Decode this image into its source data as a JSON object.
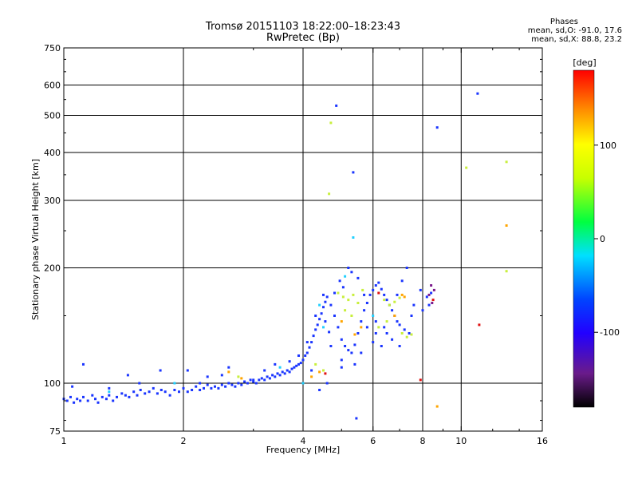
{
  "chart_data": {
    "type": "scatter",
    "title": "Tromsø 20151103 18:22:00–18:23:43",
    "subtitle": "RwPretec (Bp)",
    "xlabel": "Frequency [MHz]",
    "ylabel": "Stationary phase Virtual Height [km]",
    "x_scale": "log",
    "y_scale": "log",
    "xlim": [
      1,
      16
    ],
    "ylim": [
      75,
      750
    ],
    "x_ticks": [
      1,
      2,
      4,
      6,
      8,
      10,
      16
    ],
    "y_ticks": [
      75,
      100,
      200,
      300,
      400,
      500,
      600,
      750
    ],
    "x_gridlines": [
      2,
      4,
      6,
      8,
      10
    ],
    "y_gridlines": [
      100,
      200,
      300,
      400,
      500,
      600
    ],
    "grid": true,
    "stats": {
      "header": "Phases",
      "line1": "mean, sd,O: -91.0, 17.6",
      "line2": "mean, sd,X:  88.8, 23.2"
    },
    "colorbar": {
      "unit_label": "[deg]",
      "range": [
        -180,
        180
      ],
      "ticks": [
        {
          "value": 100,
          "label": "100"
        },
        {
          "value": 0,
          "label": "0"
        },
        {
          "value": -100,
          "label": "-100"
        }
      ]
    },
    "series": [
      {
        "points": [
          [
            1.0,
            91
          ],
          [
            1.02,
            90
          ],
          [
            1.04,
            92
          ],
          [
            1.06,
            89
          ],
          [
            1.08,
            91
          ],
          [
            1.1,
            90
          ],
          [
            1.12,
            92
          ],
          [
            1.15,
            90
          ],
          [
            1.18,
            93
          ],
          [
            1.2,
            91
          ],
          [
            1.22,
            89
          ],
          [
            1.25,
            92
          ],
          [
            1.28,
            91
          ],
          [
            1.3,
            93
          ],
          [
            1.33,
            90
          ],
          [
            1.36,
            92
          ],
          [
            1.4,
            94
          ],
          [
            1.43,
            93
          ],
          [
            1.46,
            92
          ],
          [
            1.5,
            95
          ],
          [
            1.53,
            93
          ],
          [
            1.56,
            96
          ],
          [
            1.6,
            94
          ],
          [
            1.64,
            95
          ],
          [
            1.68,
            97
          ],
          [
            1.72,
            94
          ],
          [
            1.76,
            96
          ],
          [
            1.8,
            95
          ],
          [
            1.85,
            93
          ],
          [
            1.9,
            96
          ],
          [
            1.95,
            95
          ],
          [
            2.0,
            97
          ],
          [
            2.05,
            95
          ],
          [
            2.1,
            96
          ],
          [
            2.15,
            98
          ],
          [
            2.2,
            96
          ],
          [
            2.25,
            97
          ],
          [
            2.3,
            99
          ],
          [
            2.35,
            97
          ],
          [
            2.4,
            98
          ],
          [
            2.45,
            97
          ],
          [
            2.5,
            99
          ],
          [
            2.55,
            98
          ],
          [
            2.6,
            100
          ],
          [
            2.65,
            99
          ],
          [
            2.7,
            98
          ],
          [
            2.75,
            100
          ],
          [
            2.8,
            99
          ],
          [
            2.85,
            101
          ],
          [
            2.9,
            100
          ],
          [
            2.95,
            102
          ],
          [
            3.0,
            101
          ],
          [
            3.05,
            100
          ],
          [
            3.1,
            102
          ],
          [
            3.15,
            103
          ],
          [
            3.2,
            102
          ],
          [
            3.25,
            104
          ],
          [
            3.3,
            103
          ],
          [
            3.35,
            105
          ],
          [
            3.4,
            104
          ],
          [
            3.45,
            106
          ],
          [
            3.5,
            105
          ],
          [
            3.55,
            107
          ],
          [
            3.6,
            106
          ],
          [
            3.65,
            108
          ],
          [
            3.7,
            107
          ],
          [
            3.75,
            109
          ],
          [
            3.8,
            110
          ],
          [
            3.85,
            111
          ],
          [
            3.9,
            112
          ],
          [
            3.95,
            113
          ],
          [
            4.0,
            115
          ],
          [
            4.05,
            118
          ],
          [
            4.1,
            120
          ],
          [
            4.15,
            124
          ],
          [
            4.2,
            128
          ],
          [
            4.25,
            133
          ],
          [
            4.3,
            138
          ],
          [
            4.35,
            142
          ],
          [
            4.4,
            147
          ],
          [
            4.45,
            152
          ],
          [
            4.5,
            158
          ],
          [
            4.55,
            163
          ],
          [
            4.6,
            168
          ],
          [
            4.7,
            160
          ],
          [
            4.8,
            150
          ],
          [
            4.9,
            140
          ],
          [
            5.0,
            130
          ],
          [
            5.1,
            125
          ],
          [
            5.2,
            122
          ],
          [
            5.3,
            120
          ],
          [
            5.4,
            126
          ],
          [
            5.5,
            135
          ],
          [
            5.6,
            145
          ],
          [
            5.7,
            155
          ],
          [
            5.8,
            162
          ],
          [
            5.9,
            170
          ],
          [
            6.0,
            175
          ],
          [
            6.1,
            180
          ],
          [
            6.2,
            183
          ],
          [
            6.3,
            176
          ],
          [
            6.4,
            170
          ],
          [
            6.5,
            165
          ],
          [
            6.6,
            160
          ],
          [
            6.7,
            155
          ],
          [
            6.8,
            150
          ],
          [
            6.9,
            145
          ],
          [
            7.0,
            142
          ],
          [
            7.2,
            138
          ],
          [
            7.4,
            135
          ],
          [
            1.05,
            98
          ],
          [
            1.12,
            112
          ],
          [
            1.3,
            97
          ],
          [
            1.45,
            105
          ],
          [
            1.55,
            100
          ],
          [
            1.75,
            108
          ],
          [
            2.05,
            108
          ],
          [
            2.3,
            104
          ],
          [
            2.5,
            105
          ],
          [
            2.6,
            110
          ],
          [
            3.2,
            108
          ],
          [
            3.4,
            112
          ],
          [
            3.7,
            114
          ],
          [
            3.9,
            118
          ],
          [
            4.1,
            128
          ],
          [
            4.3,
            150
          ],
          [
            4.5,
            170
          ],
          [
            4.55,
            145
          ],
          [
            4.65,
            136
          ],
          [
            4.8,
            172
          ],
          [
            4.95,
            185
          ],
          [
            5.05,
            178
          ],
          [
            5.2,
            200
          ],
          [
            5.3,
            195
          ],
          [
            5.5,
            188
          ],
          [
            5.7,
            170
          ],
          [
            6.1,
            145
          ],
          [
            6.3,
            125
          ],
          [
            6.5,
            135
          ],
          [
            6.9,
            170
          ],
          [
            7.1,
            185
          ],
          [
            7.3,
            200
          ],
          [
            7.6,
            160
          ],
          [
            7.9,
            175
          ],
          [
            8.2,
            168
          ],
          [
            8.4,
            172
          ],
          [
            4.7,
            125
          ],
          [
            5.0,
            115
          ],
          [
            5.4,
            112
          ],
          [
            5.8,
            140
          ],
          [
            4.85,
            530
          ],
          [
            5.35,
            355
          ],
          [
            8.7,
            465
          ],
          [
            11.0,
            570
          ],
          [
            5.45,
            81
          ],
          [
            6.1,
            135
          ],
          [
            4.4,
            96
          ],
          [
            4.6,
            100
          ],
          [
            5.0,
            110
          ],
          [
            5.6,
            120
          ],
          [
            6.0,
            128
          ],
          [
            6.4,
            140
          ],
          [
            6.7,
            130
          ],
          [
            7.0,
            125
          ],
          [
            7.5,
            150
          ],
          [
            8.0,
            155
          ],
          [
            8.3,
            160
          ],
          [
            4.2,
            108
          ],
          [
            3.0,
            102
          ],
          [
            2.2,
            100
          ]
        ],
        "color": "#1a35ff"
      },
      {
        "points": [
          [
            4.9,
            172
          ],
          [
            5.05,
            168
          ],
          [
            5.2,
            165
          ],
          [
            5.35,
            170
          ],
          [
            5.5,
            162
          ],
          [
            5.65,
            175
          ],
          [
            6.4,
            165
          ],
          [
            6.6,
            160
          ],
          [
            6.8,
            163
          ],
          [
            7.0,
            167
          ],
          [
            7.1,
            135
          ],
          [
            7.3,
            132
          ],
          [
            7.5,
            134
          ],
          [
            4.7,
            478
          ],
          [
            4.65,
            312
          ],
          [
            13.0,
            378
          ],
          [
            10.3,
            365
          ],
          [
            13.0,
            196
          ],
          [
            5.1,
            155
          ],
          [
            5.3,
            150
          ],
          [
            6.2,
            140
          ],
          [
            6.5,
            145
          ],
          [
            2.75,
            104
          ],
          [
            4.3,
            112
          ],
          [
            4.5,
            108
          ]
        ],
        "color": "#c8ef3c"
      },
      {
        "points": [
          [
            2.6,
            107
          ],
          [
            2.8,
            103
          ],
          [
            4.2,
            104
          ],
          [
            4.4,
            107
          ],
          [
            5.4,
            134
          ],
          [
            5.6,
            140
          ],
          [
            7.1,
            170
          ],
          [
            7.2,
            168
          ],
          [
            8.7,
            87
          ],
          [
            13.0,
            258
          ],
          [
            6.8,
            150
          ],
          [
            5.0,
            145
          ]
        ],
        "color": "#ffa500"
      },
      {
        "points": [
          [
            11.1,
            142
          ],
          [
            7.9,
            102
          ],
          [
            4.55,
            106
          ],
          [
            6.2,
            172
          ],
          [
            8.5,
            165
          ]
        ],
        "color": "#e01010"
      },
      {
        "points": [
          [
            5.35,
            240
          ],
          [
            4.4,
            160
          ],
          [
            4.5,
            140
          ],
          [
            5.1,
            190
          ],
          [
            6.0,
            150
          ],
          [
            1.3,
            95
          ],
          [
            1.9,
            100
          ],
          [
            3.5,
            110
          ],
          [
            4.0,
            100
          ]
        ],
        "color": "#20d0ff"
      },
      {
        "points": [
          [
            8.4,
            180
          ],
          [
            8.45,
            162
          ],
          [
            8.55,
            175
          ],
          [
            8.3,
            170
          ]
        ],
        "color": "#7b1a8c"
      }
    ]
  }
}
